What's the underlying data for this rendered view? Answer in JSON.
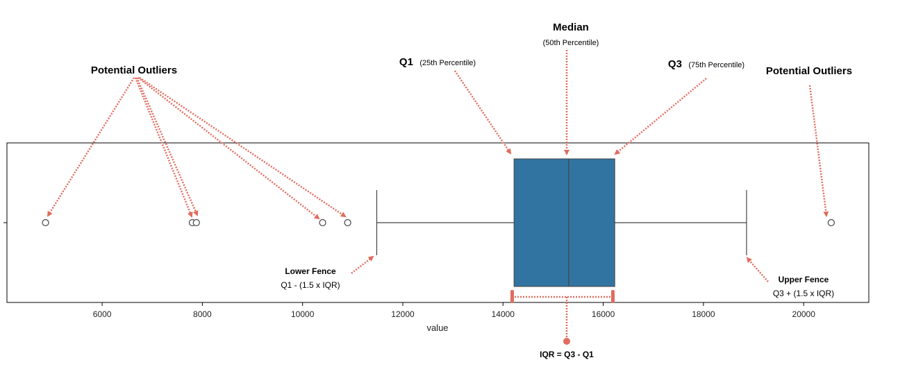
{
  "chart_data": {
    "type": "box",
    "xlabel": "value",
    "xlim": [
      4100,
      21300
    ],
    "ticks": [
      6000,
      8000,
      10000,
      12000,
      14000,
      16000,
      18000,
      20000
    ],
    "tick_labels": [
      "6000",
      "8000",
      "10000",
      "12000",
      "14000",
      "16000",
      "18000",
      "20000"
    ],
    "box": {
      "lower_whisker": 11480,
      "q1": 14220,
      "median": 15310,
      "q3": 16230,
      "upper_whisker": 18860,
      "color": "#3274a1"
    },
    "outliers": [
      4870,
      7800,
      7880,
      10400,
      10900,
      20550
    ]
  },
  "annotations": {
    "median": {
      "title": "Median",
      "sub": "(50th Percentile)"
    },
    "q1": {
      "title": "Q1",
      "sub": "(25th Percentile)"
    },
    "q3": {
      "title": "Q3",
      "sub": "(75th Percentile)"
    },
    "outliers_left": {
      "title": "Potential Outliers"
    },
    "outliers_right": {
      "title": "Potential Outliers"
    },
    "lower_fence": {
      "title": "Lower Fence",
      "sub": "Q1 - (1.5 x IQR)"
    },
    "upper_fence": {
      "title": "Upper Fence",
      "sub": "Q3 + (1.5 x IQR)"
    },
    "iqr": {
      "title": "IQR = Q3 - Q1"
    },
    "arrow_color": "#e06c5f"
  }
}
